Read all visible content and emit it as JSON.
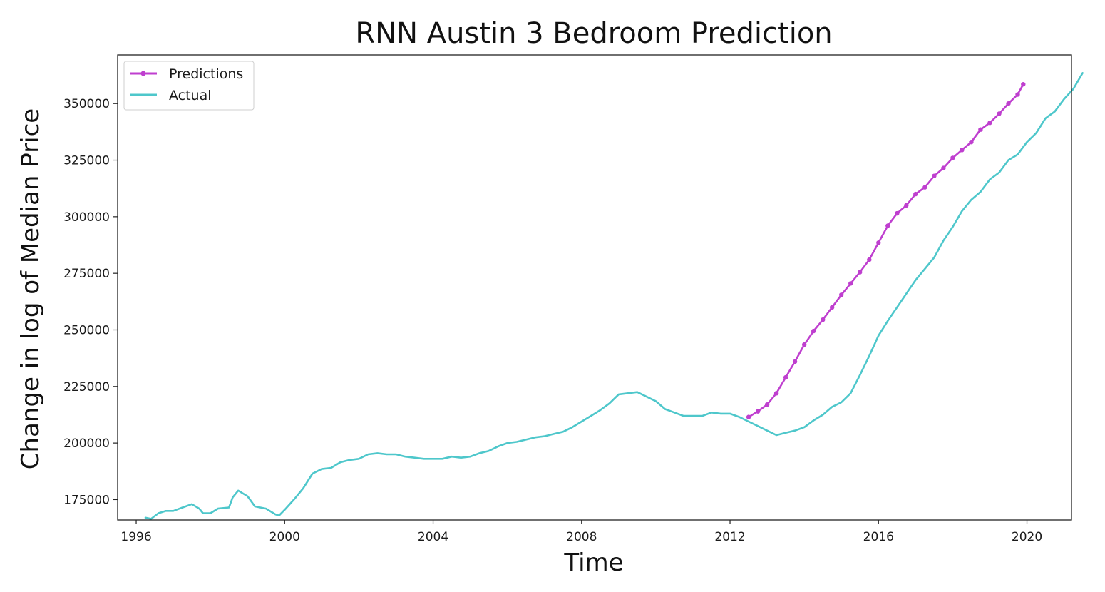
{
  "chart_data": {
    "type": "line",
    "title": "RNN Austin 3 Bedroom Prediction",
    "xlabel": "Time",
    "ylabel": "Change in log of Median Price",
    "xlim": [
      1995.5,
      2021.2
    ],
    "ylim": [
      166000,
      371500
    ],
    "x_ticks": [
      1996,
      2000,
      2004,
      2008,
      2012,
      2016,
      2020
    ],
    "y_ticks": [
      175000,
      200000,
      225000,
      250000,
      275000,
      300000,
      325000,
      350000
    ],
    "legend_position": "upper-left",
    "grid": false,
    "series": [
      {
        "name": "Predictions",
        "color": "#bf3fcf",
        "marker": "circle",
        "points": [
          [
            2012.5,
            211500
          ],
          [
            2012.75,
            214000
          ],
          [
            2013.0,
            217000
          ],
          [
            2013.25,
            222000
          ],
          [
            2013.5,
            229000
          ],
          [
            2013.75,
            236000
          ],
          [
            2014.0,
            243500
          ],
          [
            2014.25,
            249500
          ],
          [
            2014.5,
            254500
          ],
          [
            2014.75,
            260000
          ],
          [
            2015.0,
            265500
          ],
          [
            2015.25,
            270500
          ],
          [
            2015.5,
            275500
          ],
          [
            2015.75,
            281000
          ],
          [
            2016.0,
            288500
          ],
          [
            2016.25,
            296000
          ],
          [
            2016.5,
            301500
          ],
          [
            2016.75,
            305000
          ],
          [
            2017.0,
            310000
          ],
          [
            2017.25,
            313000
          ],
          [
            2017.5,
            318000
          ],
          [
            2017.75,
            321500
          ],
          [
            2018.0,
            326000
          ],
          [
            2018.25,
            329500
          ],
          [
            2018.5,
            333000
          ],
          [
            2018.75,
            338500
          ],
          [
            2019.0,
            341500
          ],
          [
            2019.25,
            345500
          ],
          [
            2019.5,
            350000
          ],
          [
            2019.75,
            354000
          ],
          [
            2019.9,
            358500
          ]
        ]
      },
      {
        "name": "Actual",
        "color": "#4ec7cb",
        "marker": "none",
        "points": [
          [
            1996.25,
            167000
          ],
          [
            1996.4,
            166500
          ],
          [
            1996.6,
            169000
          ],
          [
            1996.8,
            170000
          ],
          [
            1997.0,
            170000
          ],
          [
            1997.25,
            171500
          ],
          [
            1997.5,
            173000
          ],
          [
            1997.7,
            171000
          ],
          [
            1997.8,
            169000
          ],
          [
            1998.0,
            169000
          ],
          [
            1998.2,
            171000
          ],
          [
            1998.5,
            171500
          ],
          [
            1998.6,
            176000
          ],
          [
            1998.75,
            179000
          ],
          [
            1999.0,
            176500
          ],
          [
            1999.2,
            172000
          ],
          [
            1999.5,
            171000
          ],
          [
            1999.75,
            168500
          ],
          [
            1999.85,
            168000
          ],
          [
            2000.0,
            170500
          ],
          [
            2000.25,
            175000
          ],
          [
            2000.5,
            180000
          ],
          [
            2000.75,
            186500
          ],
          [
            2001.0,
            188500
          ],
          [
            2001.25,
            189000
          ],
          [
            2001.5,
            191500
          ],
          [
            2001.75,
            192500
          ],
          [
            2002.0,
            193000
          ],
          [
            2002.25,
            195000
          ],
          [
            2002.5,
            195500
          ],
          [
            2002.75,
            195000
          ],
          [
            2003.0,
            195000
          ],
          [
            2003.25,
            194000
          ],
          [
            2003.5,
            193500
          ],
          [
            2003.75,
            193000
          ],
          [
            2004.0,
            193000
          ],
          [
            2004.25,
            193000
          ],
          [
            2004.5,
            194000
          ],
          [
            2004.75,
            193500
          ],
          [
            2005.0,
            194000
          ],
          [
            2005.25,
            195500
          ],
          [
            2005.5,
            196500
          ],
          [
            2005.75,
            198500
          ],
          [
            2006.0,
            200000
          ],
          [
            2006.25,
            200500
          ],
          [
            2006.5,
            201500
          ],
          [
            2006.75,
            202500
          ],
          [
            2007.0,
            203000
          ],
          [
            2007.25,
            204000
          ],
          [
            2007.5,
            205000
          ],
          [
            2007.75,
            207000
          ],
          [
            2008.0,
            209500
          ],
          [
            2008.25,
            212000
          ],
          [
            2008.5,
            214500
          ],
          [
            2008.75,
            217500
          ],
          [
            2009.0,
            221500
          ],
          [
            2009.25,
            222000
          ],
          [
            2009.5,
            222500
          ],
          [
            2009.75,
            220500
          ],
          [
            2010.0,
            218500
          ],
          [
            2010.25,
            215000
          ],
          [
            2010.5,
            213500
          ],
          [
            2010.75,
            212000
          ],
          [
            2011.0,
            212000
          ],
          [
            2011.25,
            212000
          ],
          [
            2011.5,
            213500
          ],
          [
            2011.75,
            213000
          ],
          [
            2012.0,
            213000
          ],
          [
            2012.25,
            211500
          ],
          [
            2012.5,
            209500
          ],
          [
            2012.75,
            207500
          ],
          [
            2013.0,
            205500
          ],
          [
            2013.25,
            203500
          ],
          [
            2013.5,
            204500
          ],
          [
            2013.75,
            205500
          ],
          [
            2014.0,
            207000
          ],
          [
            2014.25,
            210000
          ],
          [
            2014.5,
            212500
          ],
          [
            2014.75,
            216000
          ],
          [
            2015.0,
            218000
          ],
          [
            2015.25,
            222000
          ],
          [
            2015.5,
            230000
          ],
          [
            2015.75,
            238500
          ],
          [
            2016.0,
            247500
          ],
          [
            2016.25,
            254000
          ],
          [
            2016.5,
            260000
          ],
          [
            2016.75,
            266000
          ],
          [
            2017.0,
            272000
          ],
          [
            2017.25,
            277000
          ],
          [
            2017.5,
            282000
          ],
          [
            2017.75,
            289500
          ],
          [
            2018.0,
            295500
          ],
          [
            2018.25,
            302500
          ],
          [
            2018.5,
            307500
          ],
          [
            2018.75,
            311000
          ],
          [
            2019.0,
            316500
          ],
          [
            2019.25,
            319500
          ],
          [
            2019.5,
            325000
          ],
          [
            2019.75,
            327500
          ],
          [
            2020.0,
            333000
          ],
          [
            2020.25,
            337000
          ],
          [
            2020.5,
            343500
          ],
          [
            2020.75,
            346500
          ],
          [
            2021.0,
            352000
          ],
          [
            2021.25,
            356500
          ],
          [
            2021.5,
            363500
          ]
        ]
      }
    ]
  }
}
